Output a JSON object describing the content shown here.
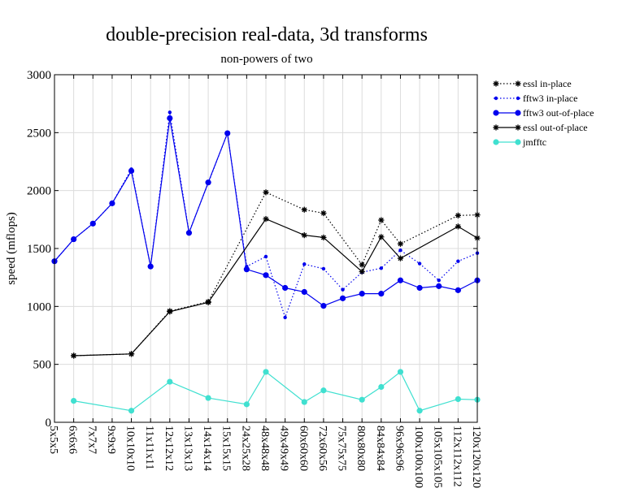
{
  "chart_data": {
    "type": "line",
    "title": "double-precision real-data, 3d transforms",
    "subtitle": "non-powers of two",
    "xlabel": "",
    "ylabel": "speed (mflops)",
    "ylim": [
      0,
      3000
    ],
    "yticks": [
      0,
      500,
      1000,
      1500,
      2000,
      2500,
      3000
    ],
    "grid": true,
    "legend_position": "top-right",
    "categories": [
      "5x5x5",
      "6x6x6",
      "7x7x7",
      "9x9x9",
      "10x10x10",
      "11x11x11",
      "12x12x12",
      "13x13x13",
      "14x14x14",
      "15x15x15",
      "24x25x28",
      "48x48x48",
      "49x49x49",
      "60x60x60",
      "72x60x56",
      "75x75x75",
      "80x80x80",
      "84x84x84",
      "96x96x96",
      "100x100x100",
      "105x105x105",
      "112x112x112",
      "120x120x120"
    ],
    "series": [
      {
        "name": "essl in-place",
        "color": "#000000",
        "marker": "star",
        "dash": "dotted",
        "values": [
          null,
          575,
          null,
          null,
          590,
          null,
          960,
          null,
          1040,
          null,
          null,
          1985,
          null,
          1835,
          1805,
          null,
          1360,
          1745,
          1540,
          null,
          null,
          1785,
          1790
        ]
      },
      {
        "name": "fftw3 in-place",
        "color": "#0000ee",
        "marker": "dot-small",
        "dash": "dotted",
        "values": [
          1390,
          1580,
          1715,
          1890,
          2185,
          1345,
          2675,
          1640,
          2065,
          2495,
          1345,
          1430,
          905,
          1365,
          1325,
          1145,
          1295,
          1330,
          1485,
          1370,
          1225,
          1390,
          1460
        ]
      },
      {
        "name": "fftw3 out-of-place",
        "color": "#0000ee",
        "marker": "dot",
        "dash": "solid",
        "values": [
          1390,
          1580,
          1715,
          1890,
          2170,
          1345,
          2625,
          1635,
          2070,
          2495,
          1320,
          1270,
          1160,
          1125,
          1005,
          1070,
          1110,
          1110,
          1225,
          1160,
          1175,
          1140,
          1225
        ]
      },
      {
        "name": "essl out-of-place",
        "color": "#000000",
        "marker": "star",
        "dash": "solid",
        "values": [
          null,
          575,
          null,
          null,
          590,
          null,
          955,
          null,
          1035,
          null,
          null,
          1755,
          null,
          1615,
          1595,
          null,
          1300,
          1600,
          1415,
          null,
          null,
          1690,
          1590
        ]
      },
      {
        "name": "jmfftc",
        "color": "#40e0d0",
        "marker": "dot",
        "dash": "solid",
        "values": [
          null,
          185,
          null,
          null,
          100,
          null,
          350,
          null,
          210,
          null,
          155,
          435,
          null,
          175,
          275,
          null,
          195,
          305,
          435,
          100,
          null,
          200,
          195
        ]
      }
    ]
  }
}
